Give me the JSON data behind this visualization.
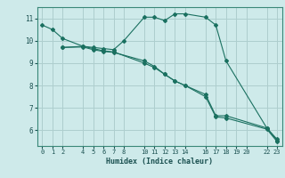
{
  "xlabel": "Humidex (Indice chaleur)",
  "bg_color": "#ceeaea",
  "grid_color": "#aecece",
  "line_color": "#1a7060",
  "lines": [
    {
      "x": [
        0,
        1,
        2,
        4,
        5,
        6,
        7,
        8,
        10,
        11,
        12,
        13,
        14,
        16,
        17,
        18,
        22,
        23
      ],
      "y": [
        10.7,
        10.5,
        10.1,
        9.75,
        9.7,
        9.65,
        9.6,
        10.0,
        11.05,
        11.05,
        10.9,
        11.2,
        11.2,
        11.05,
        10.7,
        9.1,
        6.1,
        5.6
      ]
    },
    {
      "x": [
        2,
        4,
        5,
        6,
        7,
        10,
        11,
        12,
        13,
        14,
        16,
        17,
        18,
        22,
        23
      ],
      "y": [
        9.7,
        9.75,
        9.65,
        9.55,
        9.5,
        9.0,
        8.8,
        8.5,
        8.2,
        8.0,
        7.6,
        6.65,
        6.65,
        6.1,
        5.55
      ]
    },
    {
      "x": [
        2,
        4,
        5,
        6,
        7,
        10,
        11,
        12,
        13,
        14,
        16,
        17,
        18,
        22,
        23
      ],
      "y": [
        9.7,
        9.72,
        9.6,
        9.52,
        9.48,
        9.1,
        8.85,
        8.5,
        8.2,
        8.0,
        7.5,
        6.6,
        6.55,
        6.05,
        5.5
      ]
    }
  ],
  "ylim": [
    5.3,
    11.5
  ],
  "xlim": [
    -0.5,
    23.5
  ],
  "yticks": [
    6,
    7,
    8,
    9,
    10,
    11
  ],
  "xticks": [
    0,
    1,
    2,
    4,
    5,
    6,
    7,
    8,
    10,
    11,
    12,
    13,
    14,
    16,
    17,
    18,
    19,
    20,
    22,
    23
  ]
}
